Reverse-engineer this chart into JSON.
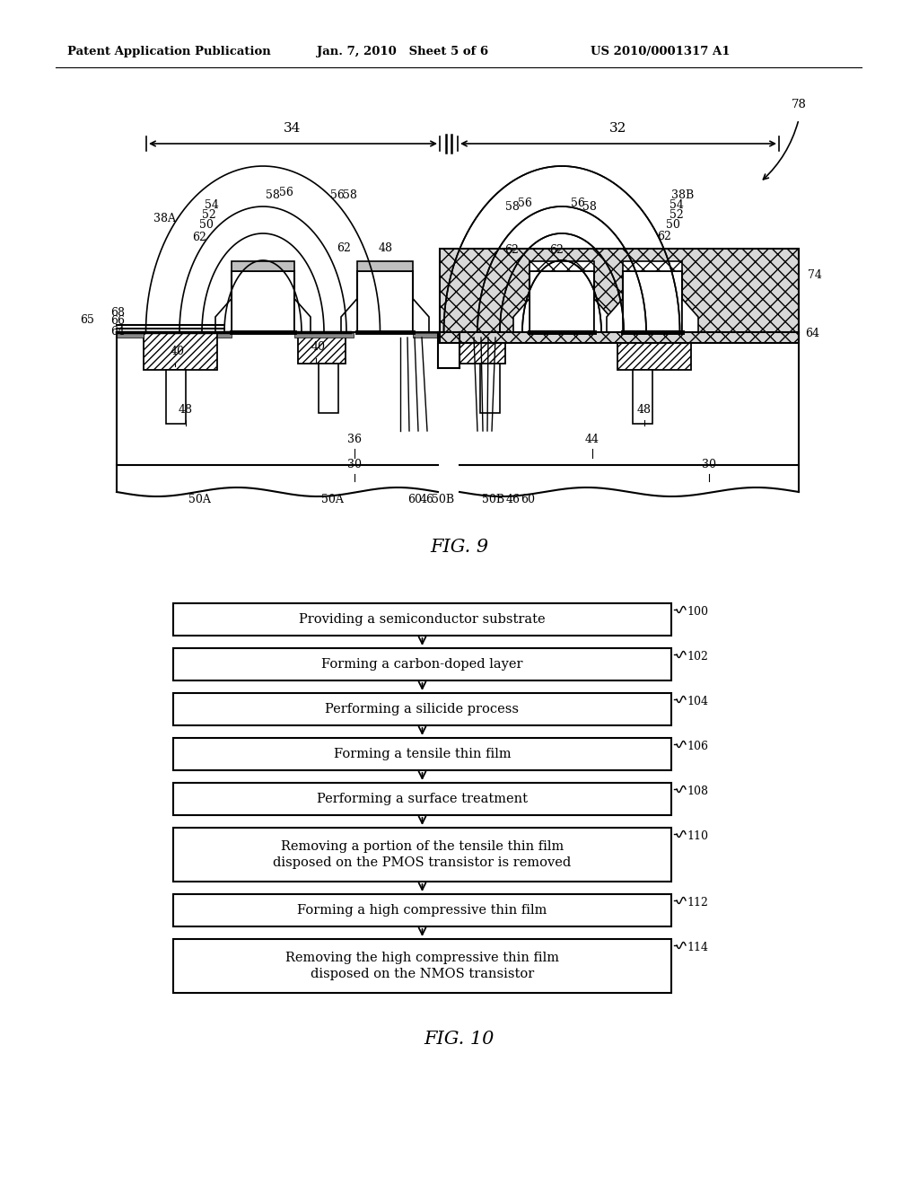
{
  "header_left": "Patent Application Publication",
  "header_mid": "Jan. 7, 2010   Sheet 5 of 6",
  "header_right": "US 2010/0001317 A1",
  "fig9_label": "FIG. 9",
  "fig10_label": "FIG. 10",
  "flowchart_steps": [
    {
      "text": "Providing a semiconductor substrate",
      "label": "100",
      "two_line": false
    },
    {
      "text": "Forming a carbon-doped layer",
      "label": "102",
      "two_line": false
    },
    {
      "text": "Performing a silicide process",
      "label": "104",
      "two_line": false
    },
    {
      "text": "Forming a tensile thin film",
      "label": "106",
      "two_line": false
    },
    {
      "text": "Performing a surface treatment",
      "label": "108",
      "two_line": false
    },
    {
      "text": "Removing a portion of the tensile thin film\ndisposed on the PMOS transistor is removed",
      "label": "110",
      "two_line": true
    },
    {
      "text": "Forming a high compressive thin film",
      "label": "112",
      "two_line": false
    },
    {
      "text": "Removing the high compressive thin film\ndisposed on the NMOS transistor",
      "label": "114",
      "two_line": true
    }
  ],
  "bg_color": "#ffffff",
  "line_color": "#000000"
}
